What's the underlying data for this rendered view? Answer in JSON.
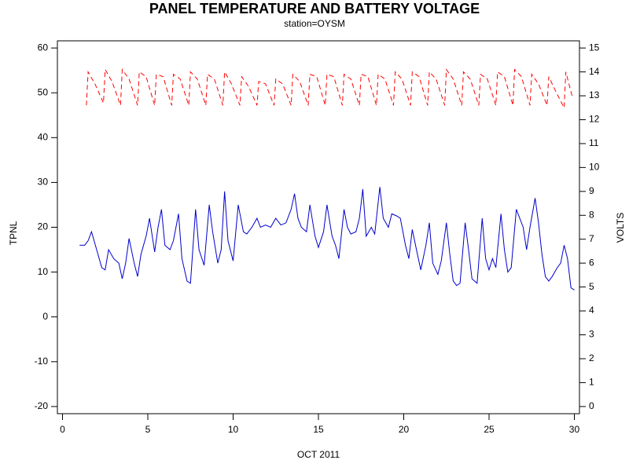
{
  "chart_data": {
    "type": "line",
    "title": "PANEL TEMPERATURE AND BATTERY VOLTAGE",
    "subtitle": "station=OYSM",
    "x_label": "OCT 2011",
    "y_label": "TPNL",
    "y2_label": "VOLTS",
    "xlim": [
      -0.3,
      30.3
    ],
    "xticks": [
      0,
      5,
      10,
      15,
      20,
      25,
      30
    ],
    "ylim": [
      -21.6,
      61.6
    ],
    "yticks": [
      -20,
      -10,
      0,
      10,
      20,
      30,
      40,
      50,
      60
    ],
    "y2lim": [
      -0.3,
      15.3
    ],
    "y2ticks": [
      0,
      1,
      2,
      3,
      4,
      5,
      6,
      7,
      8,
      9,
      10,
      11,
      12,
      13,
      14,
      15
    ],
    "series": [
      {
        "axis": "y",
        "color": "#0000cc",
        "style": "solid",
        "x": [
          1.0,
          1.3,
          1.5,
          1.7,
          2.0,
          2.3,
          2.5,
          2.7,
          3.0,
          3.3,
          3.5,
          3.7,
          3.9,
          4.2,
          4.4,
          4.6,
          4.9,
          5.1,
          5.4,
          5.6,
          5.8,
          6.0,
          6.3,
          6.5,
          6.8,
          7.0,
          7.3,
          7.5,
          7.8,
          8.0,
          8.3,
          8.6,
          8.8,
          9.1,
          9.3,
          9.5,
          9.7,
          10.0,
          10.3,
          10.6,
          10.8,
          11.1,
          11.4,
          11.6,
          11.9,
          12.2,
          12.5,
          12.8,
          13.1,
          13.4,
          13.6,
          13.8,
          14.0,
          14.3,
          14.5,
          14.8,
          15.0,
          15.3,
          15.5,
          15.8,
          16.0,
          16.2,
          16.5,
          16.7,
          16.9,
          17.2,
          17.4,
          17.6,
          17.8,
          18.1,
          18.3,
          18.6,
          18.8,
          19.1,
          19.3,
          19.6,
          19.8,
          20.1,
          20.3,
          20.5,
          20.8,
          21.0,
          21.3,
          21.5,
          21.7,
          22.0,
          22.2,
          22.5,
          22.7,
          22.9,
          23.1,
          23.3,
          23.6,
          23.8,
          24.0,
          24.3,
          24.6,
          24.8,
          25.0,
          25.2,
          25.4,
          25.7,
          25.9,
          26.1,
          26.3,
          26.6,
          26.8,
          27.0,
          27.2,
          27.4,
          27.7,
          27.9,
          28.1,
          28.3,
          28.5,
          28.7,
          29.0,
          29.2,
          29.4,
          29.6,
          29.8,
          30.0
        ],
        "values": [
          16,
          16,
          17,
          19,
          15,
          11,
          10.5,
          15,
          13,
          12,
          8.5,
          12,
          17.5,
          12,
          9,
          14,
          18,
          22,
          14.5,
          20,
          24,
          16,
          15,
          17,
          23,
          13,
          8,
          7.5,
          24,
          15,
          11.5,
          25,
          19,
          12,
          15,
          28,
          17,
          12.5,
          25,
          19,
          18.5,
          20,
          22,
          20,
          20.5,
          20,
          22,
          20.5,
          21,
          24,
          27.5,
          22,
          20,
          19,
          25,
          18,
          15.5,
          19,
          25,
          18,
          16,
          13,
          24,
          20,
          18.5,
          19,
          22,
          28.5,
          18,
          20,
          18.5,
          29,
          22,
          20,
          23,
          22.5,
          22,
          16,
          13,
          19.5,
          14,
          10.5,
          16,
          21,
          12,
          9.5,
          12.5,
          21,
          14,
          8,
          7,
          7.5,
          21,
          15,
          8.5,
          7.5,
          22,
          13,
          10.5,
          13,
          11,
          23,
          15,
          10,
          11,
          24,
          22,
          20,
          15,
          20,
          26.5,
          21,
          14,
          9,
          8,
          9,
          11,
          12,
          16,
          13,
          6.5,
          6
        ]
      },
      {
        "axis": "y2",
        "color": "#ff0000",
        "style": "dashed",
        "x": [
          1.4,
          1.5,
          1.9,
          2.4,
          2.5,
          2.9,
          3.4,
          3.5,
          3.9,
          4.4,
          4.5,
          4.9,
          5.4,
          5.5,
          5.9,
          6.4,
          6.5,
          6.9,
          7.4,
          7.5,
          7.9,
          8.4,
          8.5,
          8.9,
          9.4,
          9.5,
          9.9,
          10.4,
          10.5,
          10.9,
          11.4,
          11.5,
          11.9,
          12.4,
          12.5,
          12.9,
          13.4,
          13.5,
          13.9,
          14.4,
          14.5,
          14.9,
          15.4,
          15.5,
          15.9,
          16.4,
          16.5,
          16.9,
          17.4,
          17.5,
          17.9,
          18.4,
          18.5,
          18.9,
          19.4,
          19.5,
          19.9,
          20.4,
          20.5,
          20.9,
          21.4,
          21.5,
          21.9,
          22.4,
          22.5,
          22.9,
          23.4,
          23.5,
          23.9,
          24.4,
          24.5,
          24.9,
          25.4,
          25.5,
          25.9,
          26.4,
          26.5,
          26.9,
          27.4,
          27.5,
          27.9,
          28.4,
          28.5,
          28.9,
          29.4,
          29.5,
          29.9
        ],
        "values": [
          12.6,
          14.0,
          13.5,
          12.7,
          14.1,
          13.6,
          12.6,
          14.1,
          13.7,
          12.6,
          14.0,
          13.8,
          12.6,
          13.9,
          13.8,
          12.6,
          13.9,
          13.7,
          12.6,
          14.0,
          13.7,
          12.6,
          13.9,
          13.7,
          12.6,
          14.0,
          13.5,
          12.6,
          13.8,
          13.4,
          12.6,
          13.6,
          13.5,
          12.6,
          13.7,
          13.5,
          12.6,
          13.9,
          13.6,
          12.6,
          13.9,
          13.8,
          12.6,
          13.9,
          13.8,
          12.6,
          13.9,
          13.7,
          12.6,
          13.9,
          13.8,
          12.6,
          13.9,
          13.7,
          12.6,
          14.0,
          13.7,
          12.6,
          14.0,
          13.8,
          12.6,
          14.0,
          13.7,
          12.6,
          14.1,
          13.7,
          12.6,
          14.0,
          13.7,
          12.6,
          13.9,
          13.7,
          12.6,
          14.0,
          13.8,
          12.6,
          14.1,
          13.8,
          12.6,
          13.9,
          13.5,
          12.6,
          13.8,
          13.2,
          12.5,
          14.0,
          12.9
        ]
      }
    ]
  }
}
